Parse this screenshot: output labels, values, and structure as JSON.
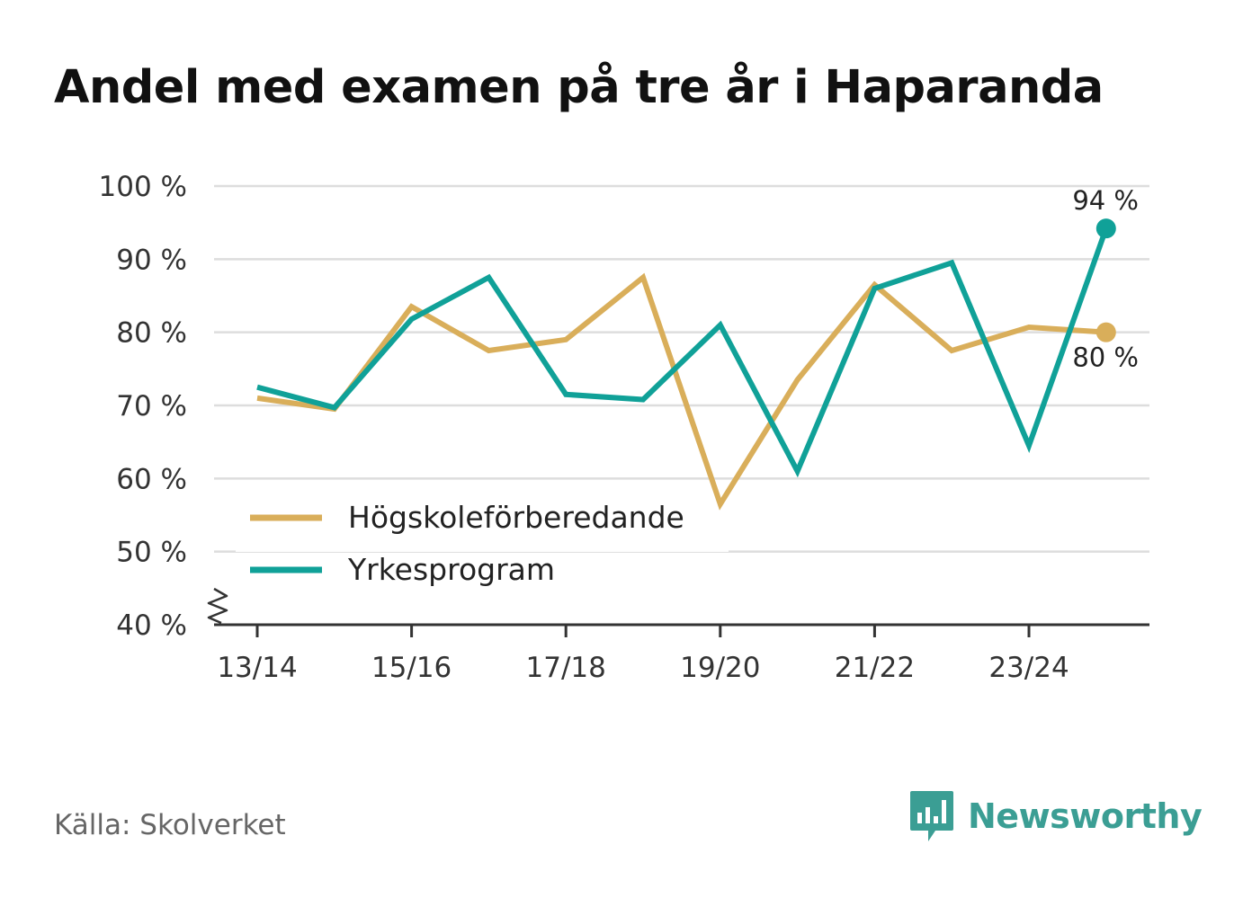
{
  "title": "Andel med examen på tre år i Haparanda",
  "source": "Källa: Skolverket",
  "brand": "Newsworthy",
  "colors": {
    "hogskole": "#d9ae5a",
    "yrkes": "#10a198",
    "grid": "#dddddd",
    "axis": "#333333",
    "brand": "#3b9e94"
  },
  "chart_data": {
    "type": "line",
    "title": "Andel med examen på tre år i Haparanda",
    "xlabel": "",
    "ylabel": "",
    "ylim": [
      40,
      100
    ],
    "yticks": [
      40,
      50,
      60,
      70,
      80,
      90,
      100
    ],
    "ytick_labels": [
      "40 %",
      "50 %",
      "60 %",
      "70 %",
      "80 %",
      "90 %",
      "100 %"
    ],
    "x": [
      "13/14",
      "14/15",
      "15/16",
      "16/17",
      "17/18",
      "18/19",
      "19/20",
      "20/21",
      "21/22",
      "22/23",
      "23/24",
      "24/25"
    ],
    "xtick_labels": [
      "13/14",
      "15/16",
      "17/18",
      "19/20",
      "21/22",
      "23/24"
    ],
    "series": [
      {
        "name": "Högskoleförberedande",
        "color": "#d9ae5a",
        "values": [
          71,
          69.5,
          83.5,
          77.5,
          79,
          87.5,
          56.5,
          73.5,
          86.5,
          77.5,
          80.7,
          80
        ],
        "end_label": "80 %"
      },
      {
        "name": "Yrkesprogram",
        "color": "#10a198",
        "values": [
          72.5,
          69.7,
          81.8,
          87.5,
          71.5,
          70.8,
          81,
          61,
          86,
          89.5,
          64.5,
          94.2
        ],
        "end_label": "94 %"
      }
    ],
    "legend": [
      "Högskoleförberedande",
      "Yrkesprogram"
    ],
    "legend_position": "bottom-left",
    "grid": true,
    "axis_break": true
  }
}
